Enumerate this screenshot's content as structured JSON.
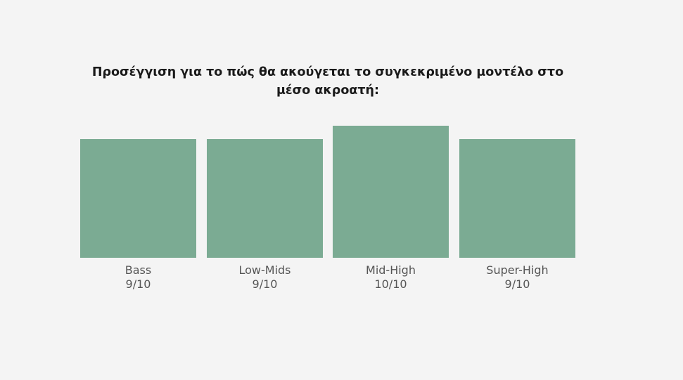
{
  "chart_data": {
    "type": "bar",
    "title": "Προσέγγιση για το πώς θα ακούγεται το συγκεκριμένο μοντέλο στο μέσο ακροατή:",
    "categories": [
      "Bass",
      "Low-Mids",
      "Mid-High",
      "Super-High"
    ],
    "values": [
      9,
      9,
      10,
      9
    ],
    "value_labels": [
      "9/10",
      "9/10",
      "10/10",
      "9/10"
    ],
    "ylim": [
      0,
      10
    ],
    "xlabel": "",
    "ylabel": "",
    "grid": false,
    "bar_color": "#7bab93"
  }
}
